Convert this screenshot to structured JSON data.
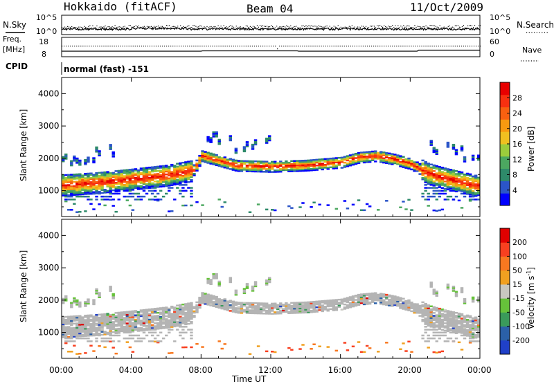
{
  "header": {
    "station": "Hokkaido (fitACF)",
    "beam": "Beam 04",
    "date": "11/Oct/2009"
  },
  "top_strip": {
    "left_label": "N.Sky",
    "right_label": "N.Search",
    "left_ticks": [
      "10^5",
      "10^0"
    ],
    "right_ticks": [
      "10^5",
      "10^0"
    ]
  },
  "freq_strip": {
    "left_label_1": "Freq.",
    "left_label_2": "[MHz]",
    "right_label": "Nave",
    "left_ticks": [
      "18",
      "8"
    ],
    "right_ticks": [
      "60",
      "0"
    ]
  },
  "cpid": {
    "label": "CPID",
    "mode": "normal (fast) -151"
  },
  "x_axis": {
    "ticks": [
      "00:00",
      "04:00",
      "08:00",
      "12:00",
      "16:00",
      "20:00",
      "00:00"
    ],
    "label": "Time UT"
  },
  "panels": {
    "power": {
      "ylabel": "Slant Range [km]",
      "yticks": [
        "4000",
        "3000",
        "2000",
        "1000"
      ],
      "cbar_label": "Power [dB]",
      "cbar_ticks": [
        "28",
        "24",
        "20",
        "16",
        "12",
        "8",
        "4"
      ]
    },
    "velocity": {
      "ylabel": "Slant Range [km]",
      "yticks": [
        "4000",
        "3000",
        "2000",
        "1000"
      ],
      "cbar_label": "Velocity [m s",
      "cbar_label_sup": "-1",
      "cbar_label_end": "]",
      "cbar_ticks": [
        "200",
        "100",
        "50",
        "15",
        "-15",
        "-50",
        "-100",
        "-200"
      ]
    }
  },
  "colors": {
    "power_scale": [
      "#0000ff",
      "#2b55c8",
      "#2e8a6a",
      "#4ca860",
      "#9ccc3c",
      "#f0c020",
      "#f89a10",
      "#f86010",
      "#f83010",
      "#e80000"
    ],
    "velocity_scale": [
      "#2040c8",
      "#2b60a8",
      "#3a9a5a",
      "#66c23a",
      "#c8c8c0",
      "#f0a020",
      "#f87820",
      "#f84020",
      "#e00000"
    ],
    "ground_scatter": "#b4b4b4"
  },
  "chart_data": [
    {
      "type": "heatmap",
      "title": "Hokkaido (fitACF)  Beam 04  11/Oct/2009",
      "xlabel": "Time UT",
      "ylabel": "Slant Range [km]",
      "xlim_hours": [
        0,
        24
      ],
      "ylim": [
        200,
        4500
      ],
      "colorbar": {
        "label": "Power [dB]",
        "range": [
          0,
          30
        ],
        "ticks": [
          4,
          8,
          12,
          16,
          20,
          24,
          28
        ]
      },
      "main_band_center_km": [
        {
          "t": 0,
          "range": 1150
        },
        {
          "t": 2,
          "range": 1220
        },
        {
          "t": 4,
          "range": 1330
        },
        {
          "t": 6,
          "range": 1450
        },
        {
          "t": 7.5,
          "range": 1600
        },
        {
          "t": 8,
          "range": 2050
        },
        {
          "t": 9,
          "range": 1900
        },
        {
          "t": 10,
          "range": 1750
        },
        {
          "t": 12,
          "range": 1720
        },
        {
          "t": 14,
          "range": 1760
        },
        {
          "t": 16,
          "range": 1850
        },
        {
          "t": 17,
          "range": 2000
        },
        {
          "t": 18,
          "range": 2050
        },
        {
          "t": 19,
          "range": 1950
        },
        {
          "t": 20,
          "range": 1800
        },
        {
          "t": 21,
          "range": 1500
        },
        {
          "t": 22,
          "range": 1350
        },
        {
          "t": 24,
          "range": 1100
        }
      ]
    },
    {
      "type": "heatmap",
      "title": "",
      "xlabel": "Time UT",
      "ylabel": "Slant Range [km]",
      "xlim_hours": [
        0,
        24
      ],
      "ylim": [
        200,
        4500
      ],
      "colorbar": {
        "label": "Velocity [m s-1]",
        "range": [
          -250,
          250
        ],
        "ticks": [
          200,
          100,
          50,
          15,
          -15,
          -50,
          -100,
          -200
        ]
      }
    }
  ]
}
